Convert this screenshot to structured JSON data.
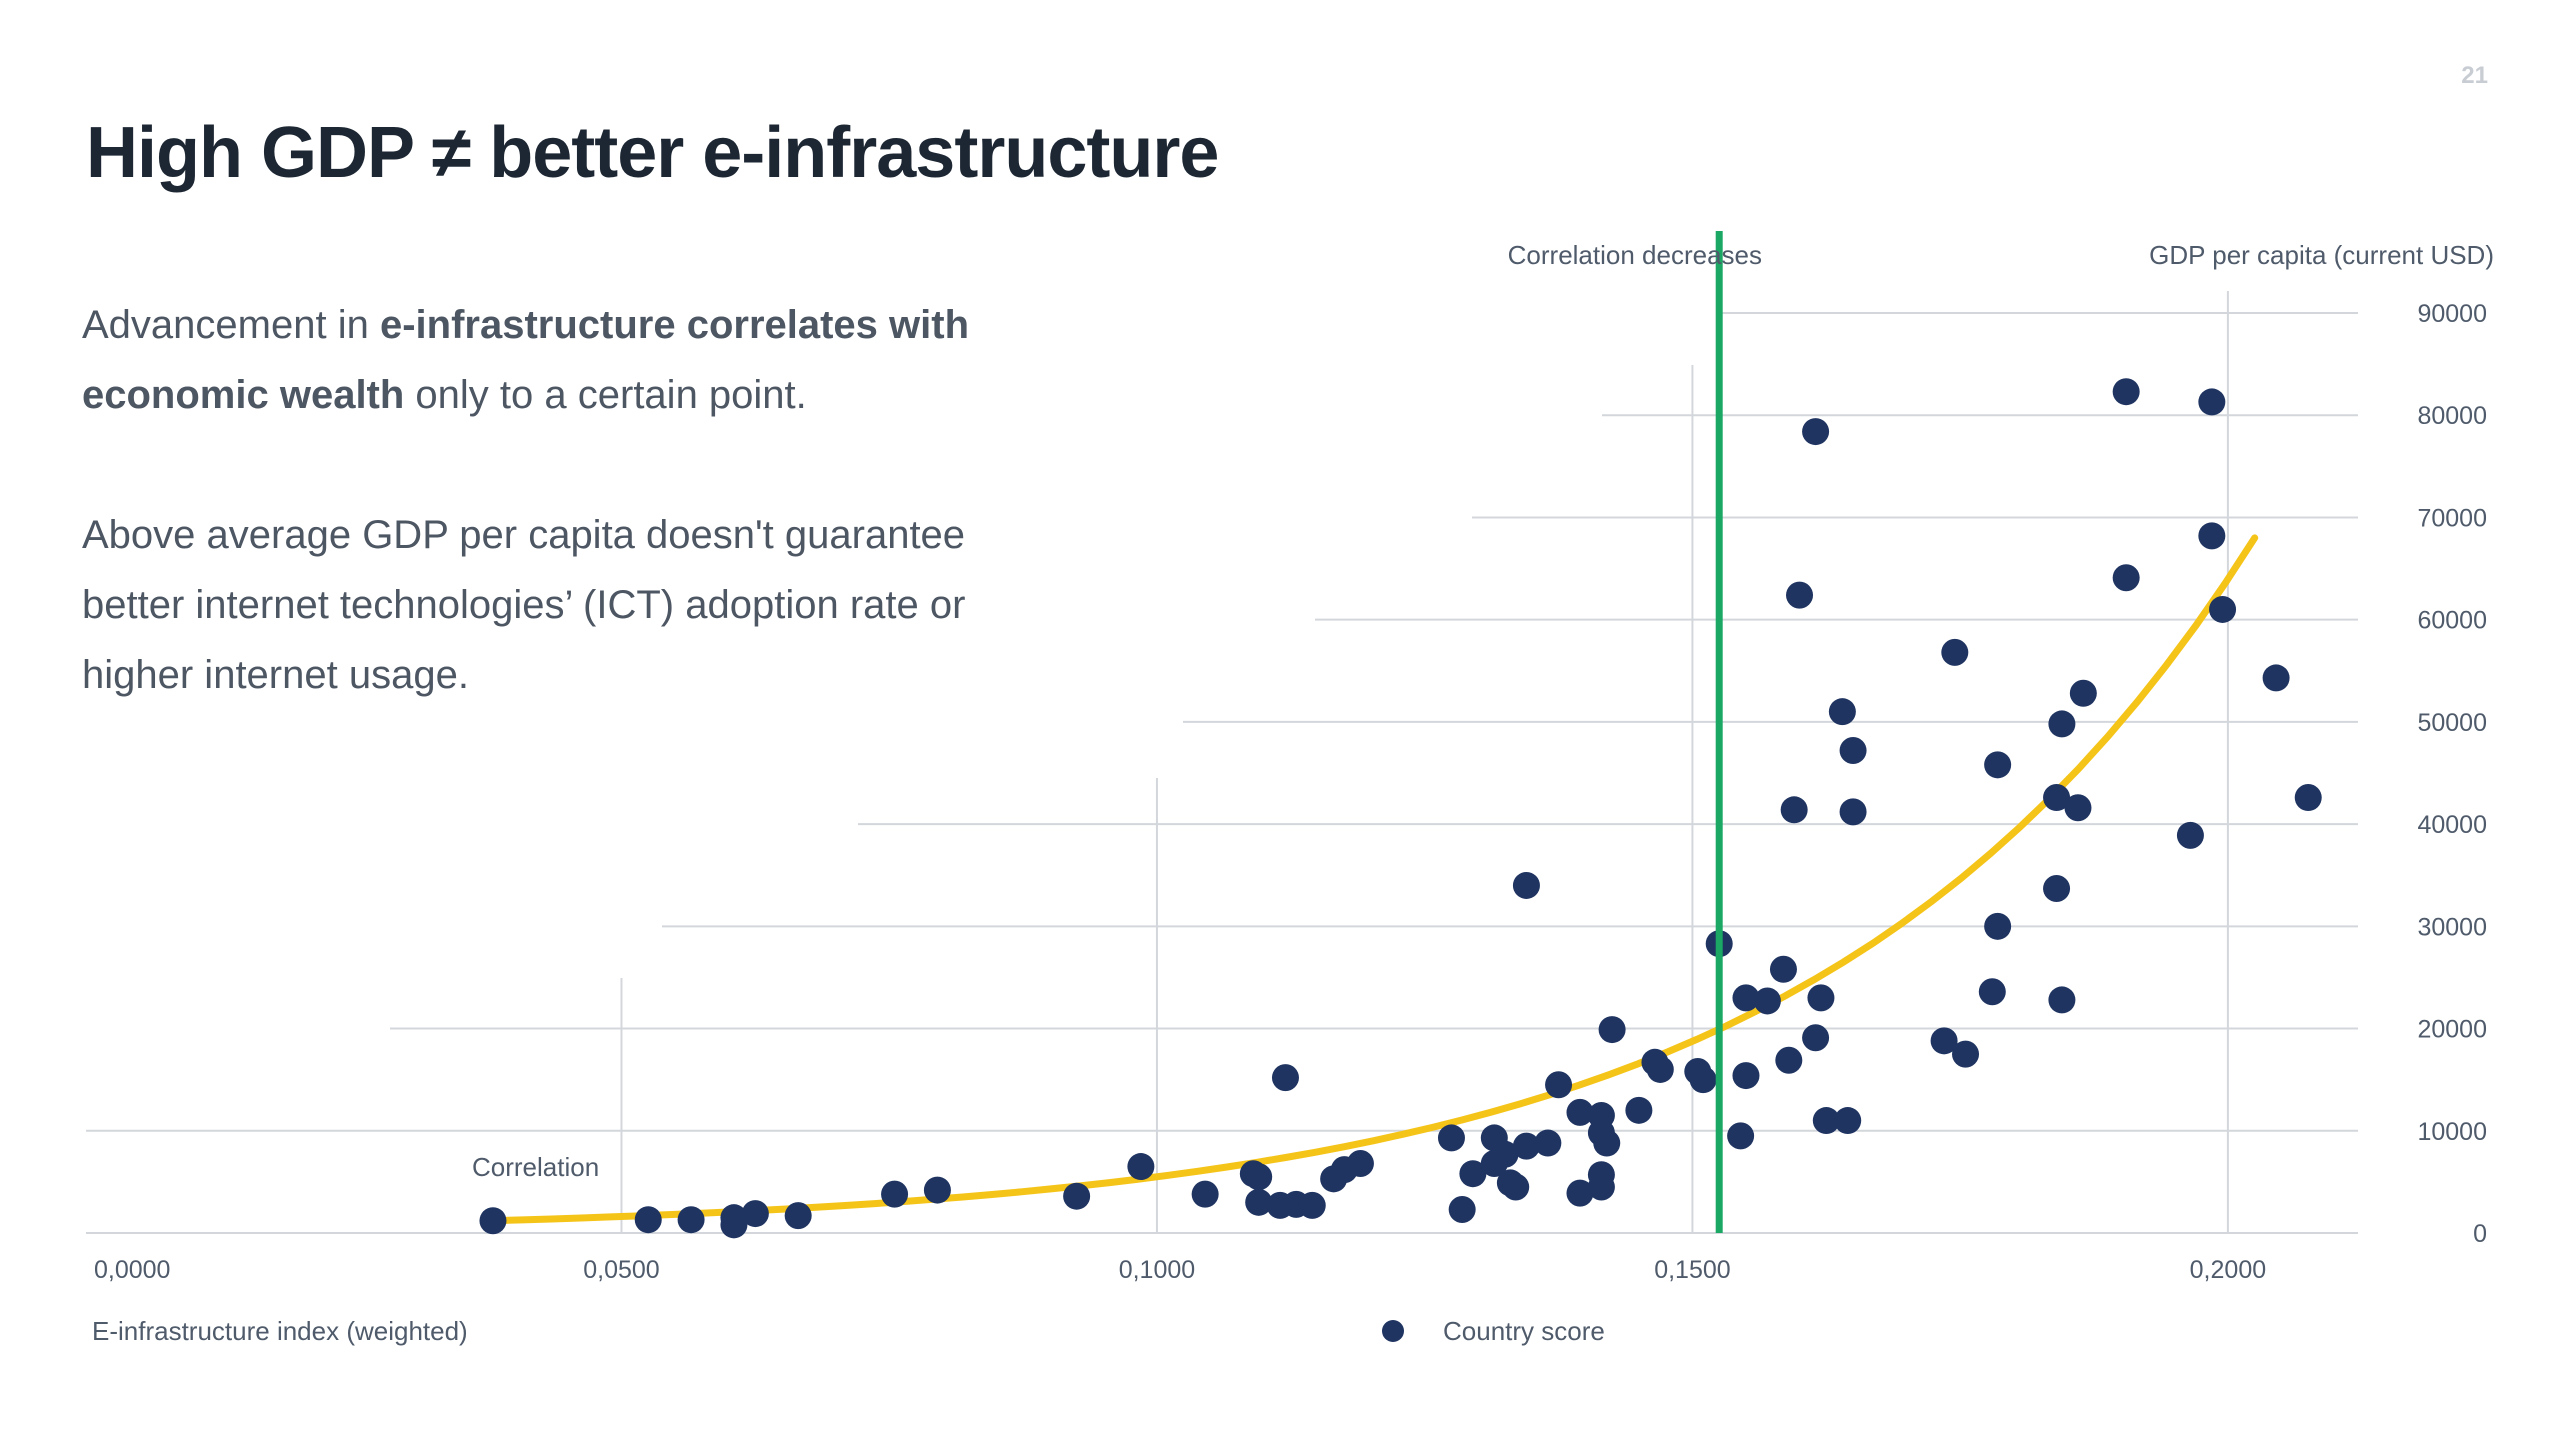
{
  "page": {
    "number": "21",
    "title": "High GDP ≠ better e-infrastructure"
  },
  "text": {
    "p1_a": "Advancement in ",
    "p1_b": "e-infrastructure correlates with economic wealth",
    "p1_c": " only to a certain point.",
    "p2": "Above average GDP per capita doesn't guarantee better internet technologies’ (ICT) adoption rate or higher internet usage."
  },
  "colors": {
    "points": "#1f3461",
    "trend": "#f5c419",
    "threshold": "#1aa864",
    "grid": "#d3d7dc",
    "axis_text": "#4f5b6b"
  },
  "chart_data": {
    "type": "scatter",
    "xlabel": "E-infrastructure index (weighted)",
    "ylabel": "GDP per capita (current USD)",
    "legend": [
      {
        "name": "Country score",
        "marker": "circle"
      }
    ],
    "legend_position": "bottom-center",
    "x_ticks": [
      "0,0000",
      "0,0500",
      "0,1000",
      "0,1500",
      "0,2000"
    ],
    "y_ticks": [
      "0",
      "10000",
      "20000",
      "30000",
      "40000",
      "50000",
      "60000",
      "70000",
      "80000",
      "90000"
    ],
    "xlim": [
      0,
      0.21
    ],
    "ylim": [
      0,
      90000
    ],
    "grid": "horizontal, perspective",
    "annotations": [
      {
        "text": "Correlation",
        "x": 0.036,
        "y": 6000
      },
      {
        "text": "Correlation decreases",
        "x": 0.1525,
        "y": 96000
      }
    ],
    "threshold_x": 0.1525,
    "trendline": {
      "type": "exponential",
      "points": [
        [
          0.038,
          1200
        ],
        [
          0.08,
          2500
        ],
        [
          0.11,
          5000
        ],
        [
          0.13,
          9500
        ],
        [
          0.15,
          20000
        ],
        [
          0.17,
          36000
        ],
        [
          0.19,
          55000
        ],
        [
          0.2025,
          68000
        ]
      ]
    },
    "series": [
      {
        "name": "Country score",
        "points": [
          [
            0.038,
            1200
          ],
          [
            0.0525,
            1300
          ],
          [
            0.0565,
            1300
          ],
          [
            0.0605,
            800
          ],
          [
            0.0605,
            1500
          ],
          [
            0.0625,
            1900
          ],
          [
            0.0665,
            1700
          ],
          [
            0.0755,
            3800
          ],
          [
            0.0795,
            4200
          ],
          [
            0.0925,
            3600
          ],
          [
            0.0985,
            6500
          ],
          [
            0.1045,
            3800
          ],
          [
            0.109,
            5800
          ],
          [
            0.1095,
            5500
          ],
          [
            0.1095,
            3000
          ],
          [
            0.1115,
            2700
          ],
          [
            0.112,
            15200
          ],
          [
            0.113,
            2800
          ],
          [
            0.1145,
            2700
          ],
          [
            0.1165,
            5300
          ],
          [
            0.1175,
            6200
          ],
          [
            0.119,
            6800
          ],
          [
            0.1275,
            9300
          ],
          [
            0.1285,
            2300
          ],
          [
            0.1295,
            5800
          ],
          [
            0.1315,
            9300
          ],
          [
            0.1325,
            7700
          ],
          [
            0.1315,
            6800
          ],
          [
            0.133,
            4900
          ],
          [
            0.1335,
            4500
          ],
          [
            0.1345,
            8500
          ],
          [
            0.1345,
            34000
          ],
          [
            0.1365,
            8800
          ],
          [
            0.1375,
            14500
          ],
          [
            0.1395,
            3900
          ],
          [
            0.1395,
            11800
          ],
          [
            0.1415,
            11500
          ],
          [
            0.1415,
            9800
          ],
          [
            0.142,
            8800
          ],
          [
            0.1415,
            5700
          ],
          [
            0.1415,
            4500
          ],
          [
            0.1425,
            19900
          ],
          [
            0.145,
            12000
          ],
          [
            0.1465,
            16700
          ],
          [
            0.147,
            16000
          ],
          [
            0.1505,
            15800
          ],
          [
            0.151,
            15000
          ],
          [
            0.1525,
            28300
          ],
          [
            0.1545,
            9500
          ],
          [
            0.155,
            15400
          ],
          [
            0.155,
            23000
          ],
          [
            0.157,
            22700
          ],
          [
            0.1585,
            25800
          ],
          [
            0.159,
            16900
          ],
          [
            0.1595,
            41400
          ],
          [
            0.16,
            62400
          ],
          [
            0.1615,
            78400
          ],
          [
            0.1615,
            19100
          ],
          [
            0.162,
            23000
          ],
          [
            0.1625,
            11000
          ],
          [
            0.164,
            51000
          ],
          [
            0.1645,
            11000
          ],
          [
            0.165,
            47200
          ],
          [
            0.165,
            41200
          ],
          [
            0.1735,
            18800
          ],
          [
            0.1745,
            56800
          ],
          [
            0.1755,
            17500
          ],
          [
            0.1785,
            45800
          ],
          [
            0.178,
            23600
          ],
          [
            0.1785,
            30000
          ],
          [
            0.184,
            33700
          ],
          [
            0.184,
            42600
          ],
          [
            0.1845,
            49800
          ],
          [
            0.1845,
            22800
          ],
          [
            0.186,
            41600
          ],
          [
            0.1865,
            52800
          ],
          [
            0.1905,
            64100
          ],
          [
            0.1905,
            82300
          ],
          [
            0.1965,
            38900
          ],
          [
            0.1985,
            81300
          ],
          [
            0.1985,
            68200
          ],
          [
            0.1995,
            61000
          ],
          [
            0.2045,
            54300
          ],
          [
            0.2075,
            42600
          ]
        ]
      }
    ]
  }
}
